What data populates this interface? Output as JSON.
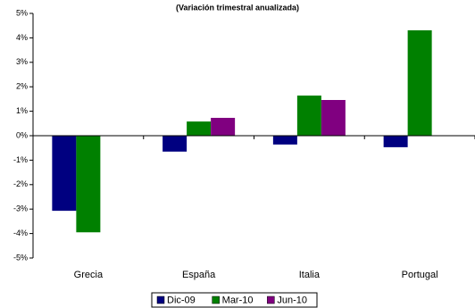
{
  "chart_data": {
    "type": "bar",
    "title": "(Variación trimestral anualizada)",
    "categories": [
      "Grecia",
      "España",
      "Italia",
      "Portugal"
    ],
    "series": [
      {
        "name": "Dic-09",
        "color": "#000080",
        "values": [
          -3.07,
          -0.65,
          -0.36,
          -0.47
        ]
      },
      {
        "name": "Mar-10",
        "color": "#008000",
        "values": [
          -3.95,
          0.58,
          1.64,
          4.31
        ]
      },
      {
        "name": "Jun-10",
        "color": "#800080",
        "values": [
          null,
          0.73,
          1.46,
          null
        ]
      }
    ],
    "ylim": [
      -5,
      5
    ],
    "yticks": [
      {
        "value": -5,
        "label": "-5%"
      },
      {
        "value": -4,
        "label": "-4%"
      },
      {
        "value": -3,
        "label": "-3%"
      },
      {
        "value": -2,
        "label": "-2%"
      },
      {
        "value": -1,
        "label": "-1%"
      },
      {
        "value": 0,
        "label": "0%"
      },
      {
        "value": 1,
        "label": "1%"
      },
      {
        "value": 2,
        "label": "2%"
      },
      {
        "value": 3,
        "label": "3%"
      },
      {
        "value": 4,
        "label": "4%"
      },
      {
        "value": 5,
        "label": "5%"
      }
    ],
    "grid": false,
    "legend": "bottom"
  }
}
